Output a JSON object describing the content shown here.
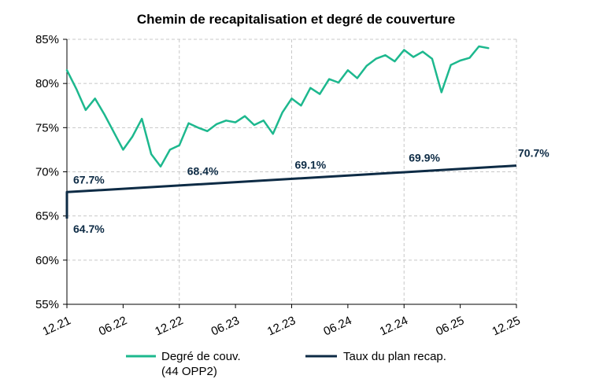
{
  "chart_data": {
    "type": "line",
    "title": "Chemin de recapitalisation et degré de couverture",
    "xlabel": "",
    "ylabel": "",
    "x_ticks": [
      "12.21",
      "06.22",
      "12.22",
      "06.23",
      "12.23",
      "06.24",
      "12.24",
      "06.25",
      "12.25"
    ],
    "y_ticks": [
      "55%",
      "60%",
      "65%",
      "70%",
      "75%",
      "80%",
      "85%"
    ],
    "ylim": [
      55,
      85
    ],
    "xlim": [
      "2021-12",
      "2025-12"
    ],
    "grid": true,
    "legend_position": "bottom",
    "colors": {
      "coverage": "#1db88e",
      "plan": "#0d2b45",
      "grid": "#c8c8c8"
    },
    "series": [
      {
        "name": "Degré de couv. (44 OPP2)",
        "name_lines": [
          "Degré de couv.",
          "(44 OPP2)"
        ],
        "x": [
          "2021-12",
          "2022-01",
          "2022-02",
          "2022-03",
          "2022-04",
          "2022-05",
          "2022-06",
          "2022-07",
          "2022-08",
          "2022-09",
          "2022-10",
          "2022-11",
          "2022-12",
          "2023-01",
          "2023-02",
          "2023-03",
          "2023-04",
          "2023-05",
          "2023-06",
          "2023-07",
          "2023-08",
          "2023-09",
          "2023-10",
          "2023-11",
          "2023-12",
          "2024-01",
          "2024-02",
          "2024-03",
          "2024-04",
          "2024-05",
          "2024-06",
          "2024-07",
          "2024-08",
          "2024-09",
          "2024-10",
          "2024-11",
          "2024-12",
          "2025-01",
          "2025-02",
          "2025-03",
          "2025-04",
          "2025-05",
          "2025-06",
          "2025-07",
          "2025-08",
          "2025-09"
        ],
        "values": [
          81.5,
          79.4,
          77.0,
          78.3,
          76.5,
          74.5,
          72.5,
          74.0,
          76.0,
          72.0,
          70.6,
          72.5,
          73.0,
          75.5,
          75.0,
          74.6,
          75.4,
          75.8,
          75.6,
          76.3,
          75.3,
          75.8,
          74.3,
          76.7,
          78.3,
          77.5,
          79.5,
          78.8,
          80.5,
          80.1,
          81.5,
          80.6,
          82.0,
          82.8,
          83.2,
          82.5,
          83.8,
          83.0,
          83.6,
          82.8,
          79.0,
          82.1,
          82.6,
          82.9,
          84.2,
          84.0
        ]
      },
      {
        "name": "Taux du plan recap.",
        "x": [
          "2021-12",
          "2025-12"
        ],
        "values": [
          67.7,
          70.7
        ]
      }
    ],
    "annotations": [
      {
        "x": "2021-12",
        "y": 67.7,
        "text": "67.7%"
      },
      {
        "x": "2021-12",
        "y": 64.7,
        "text": "64.7%"
      },
      {
        "x": "2022-12",
        "y": 68.4,
        "text": "68.4%"
      },
      {
        "x": "2023-12",
        "y": 69.1,
        "text": "69.1%"
      },
      {
        "x": "2024-12",
        "y": 69.9,
        "text": "69.9%"
      },
      {
        "x": "2025-12",
        "y": 70.7,
        "text": "70.7%"
      }
    ]
  }
}
